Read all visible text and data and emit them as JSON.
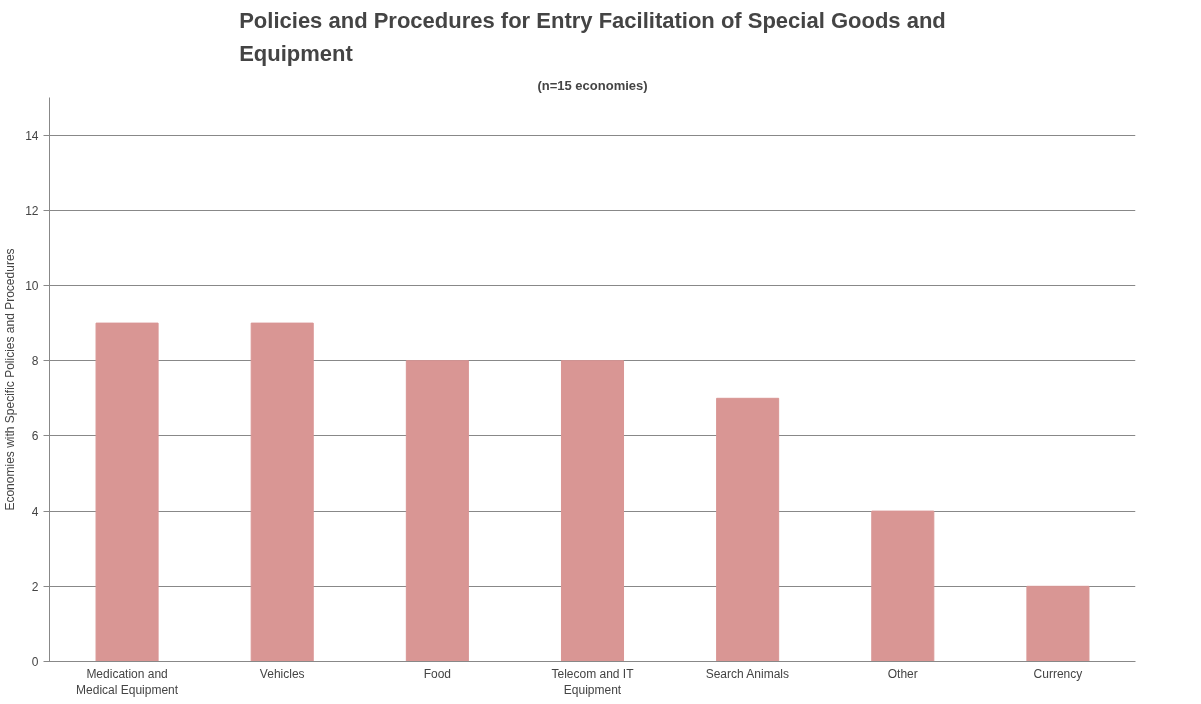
{
  "chart_data": {
    "type": "bar",
    "title": "Policies and Procedures for Entry Facilitation of Special Goods and Equipment",
    "subtitle": "(n=15 economies)",
    "ylabel": "Economies with Specific Policies and Procedures",
    "categories": [
      "Medication and Medical Equipment",
      "Vehicles",
      "Food",
      "Telecom and IT Equipment",
      "Search Animals",
      "Other",
      "Currency"
    ],
    "values": [
      9,
      9,
      8,
      8,
      7,
      4,
      2
    ],
    "color": "#d99694",
    "ylim": [
      0,
      15
    ],
    "yticks": [
      0,
      2,
      4,
      6,
      8,
      10,
      12,
      14
    ],
    "grid": "y"
  }
}
